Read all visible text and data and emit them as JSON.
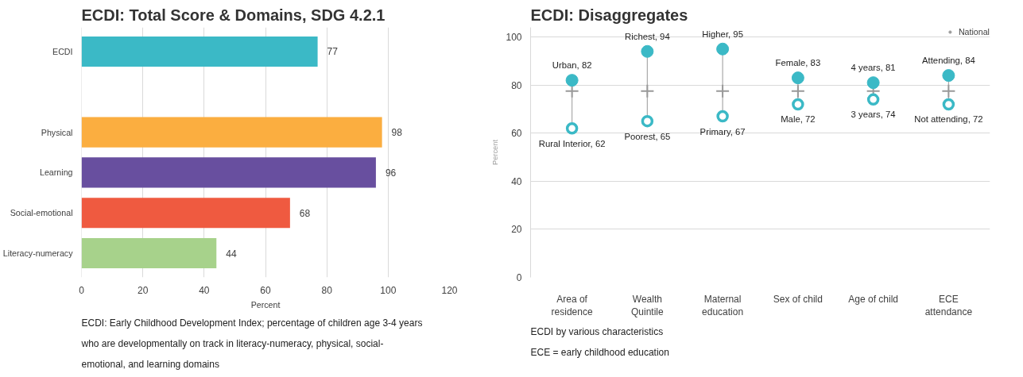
{
  "chart_data": [
    {
      "type": "bar",
      "orientation": "horizontal",
      "title": "ECDI: Total Score & Domains, SDG 4.2.1",
      "categories": [
        "ECDI",
        null,
        "Physical",
        "Learning",
        "Social-emotional",
        "Literacy-numeracy"
      ],
      "values": [
        77,
        null,
        98,
        96,
        68,
        44
      ],
      "colors": [
        "#3bb9c6",
        "#3bb9c6",
        "#fbae40",
        "#684f9f",
        "#ef5a40",
        "#a7d28b"
      ],
      "xlim": [
        0,
        120
      ],
      "xticks": [
        0,
        20,
        40,
        60,
        80,
        100,
        120
      ],
      "xlabel": "Percent",
      "grid": "x",
      "data_labels": true,
      "annotations": [
        "ECDI: Early Childhood Development Index; percentage of children age 3-4 years who are developmentally on track in literacy-numeracy, physical, social-emotional, and learning domains"
      ]
    },
    {
      "type": "scatter",
      "title": "ECDI: Disaggregates",
      "categories": [
        "Area of residence",
        "Wealth Quintile",
        "Maternal education",
        "Sex of child",
        "Age of child",
        "ECE attendance"
      ],
      "series": [
        {
          "color": "#3bb9c6",
          "marker": "circle",
          "values": [
            82,
            94,
            95,
            83,
            81,
            84
          ],
          "value_labels": [
            "Urban, 82",
            "Richest, 94",
            "Higher, 95",
            "Female, 83",
            "4 years, 81",
            "Attending, 84"
          ]
        },
        {
          "color": "#3bb9c6",
          "marker": "circle_open",
          "values": [
            62,
            65,
            67,
            72,
            74,
            72
          ],
          "value_labels": [
            "Rural Interior, 62",
            "Poorest, 65",
            "Primary, 67",
            "Male, 72",
            "3 years, 74",
            "Not attending, 72"
          ]
        },
        {
          "name": "National",
          "color": "#999999",
          "marker": "cross",
          "values": [
            77.5,
            77.5,
            77.5,
            77.5,
            77.5,
            77.5
          ]
        }
      ],
      "ylim": [
        0,
        104
      ],
      "yticks": [
        0,
        20,
        40,
        60,
        80,
        100
      ],
      "ylabel": "Percent",
      "grid": "y",
      "legend": "top right",
      "annotations": [
        "ECDI by various characteristics",
        "ECE = early childhood education"
      ]
    }
  ]
}
